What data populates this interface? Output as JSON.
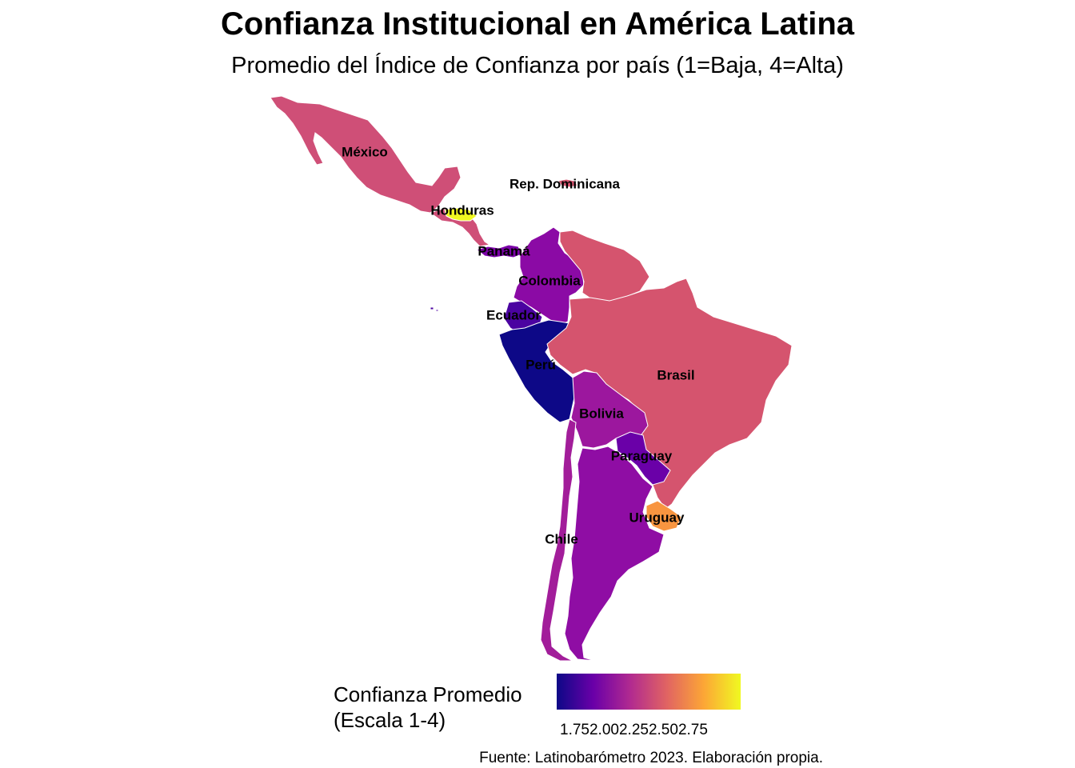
{
  "title": "Confianza Institucional en América Latina",
  "subtitle": "Promedio del Índice de Confianza por país (1=Baja, 4=Alta)",
  "legend": {
    "title_line1": "Confianza Promedio",
    "title_line2": "(Escala 1-4)",
    "ticks": [
      "1.75",
      "2.00",
      "2.25",
      "2.50",
      "2.75"
    ],
    "colors": [
      "#0d0887",
      "#6a00a8",
      "#b12a90",
      "#e16462",
      "#fca636",
      "#f0f921"
    ]
  },
  "caption": "Fuente: Latinobarómetro 2023. Elaboración propia.",
  "countries": [
    {
      "id": "mexico",
      "label": "México",
      "color": "#cf4f77"
    },
    {
      "id": "rep-dominicana",
      "label": "Rep. Dominicana",
      "color": "#d5546e"
    },
    {
      "id": "honduras",
      "label": "Honduras",
      "color": "#f0f921"
    },
    {
      "id": "panama",
      "label": "Panamá",
      "color": "#7b02a8"
    },
    {
      "id": "colombia",
      "label": "Colombia",
      "color": "#8b0aa5"
    },
    {
      "id": "ecuador",
      "label": "Ecuador",
      "color": "#4b03a1"
    },
    {
      "id": "peru",
      "label": "Perú",
      "color": "#0d0887"
    },
    {
      "id": "brasil",
      "label": "Brasil",
      "color": "#d5546e"
    },
    {
      "id": "bolivia",
      "label": "Bolivia",
      "color": "#9c179e"
    },
    {
      "id": "paraguay",
      "label": "Paraguay",
      "color": "#6a00a8"
    },
    {
      "id": "uruguay",
      "label": "Uruguay",
      "color": "#f89540"
    },
    {
      "id": "chile",
      "label": "Chile",
      "color": "#a21d9a"
    },
    {
      "id": "argentina",
      "label": "",
      "color": "#8f0da4"
    },
    {
      "id": "central-america",
      "label": "",
      "color": "#cf4f77"
    },
    {
      "id": "venezuela",
      "label": "",
      "color": "#d5546e"
    }
  ]
}
